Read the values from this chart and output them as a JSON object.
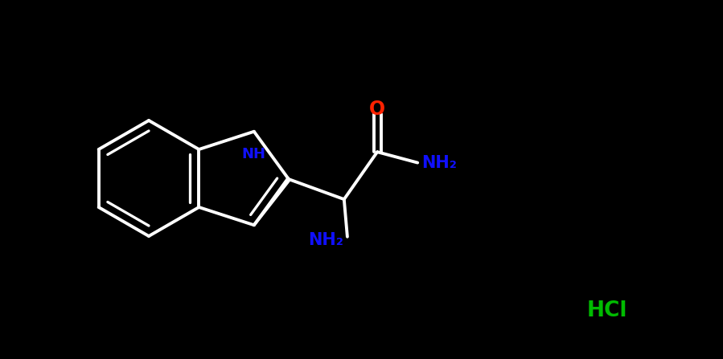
{
  "background_color": "#000000",
  "bond_color": "#ffffff",
  "bond_width": 2.8,
  "atom_colors": {
    "O": "#ff2200",
    "N": "#1010ff",
    "Cl_label": "#00bb00",
    "C": "#ffffff"
  },
  "figsize": [
    8.99,
    4.47
  ],
  "dpi": 100,
  "xlim": [
    0,
    8.99
  ],
  "ylim": [
    0,
    4.47
  ]
}
